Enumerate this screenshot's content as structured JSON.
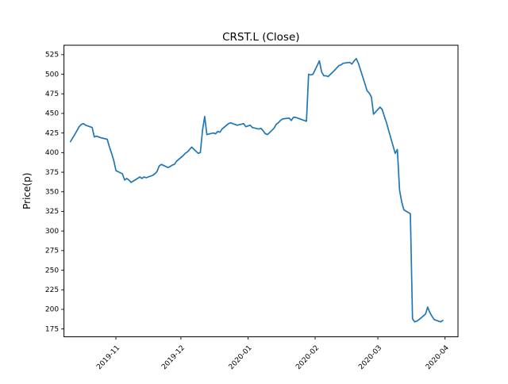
{
  "chart_data": {
    "type": "line",
    "title": "CRST.L (Close)",
    "ylabel": "Price(p)",
    "xlabel": "",
    "line_color": "#1f77b4",
    "background_color": "#ffffff",
    "grid": false,
    "legend": null,
    "ylim": [
      165,
      537
    ],
    "xlim": [
      "2019-10-08",
      "2020-04-07"
    ],
    "yticks": [
      175,
      200,
      225,
      250,
      275,
      300,
      325,
      350,
      375,
      400,
      425,
      450,
      475,
      500,
      525
    ],
    "xticks": [
      {
        "date": "2019-11-01",
        "label": "2019-11"
      },
      {
        "date": "2019-12-01",
        "label": "2019-12"
      },
      {
        "date": "2020-01-01",
        "label": "2020-01"
      },
      {
        "date": "2020-02-01",
        "label": "2020-02"
      },
      {
        "date": "2020-03-01",
        "label": "2020-03"
      },
      {
        "date": "2020-04-01",
        "label": "2020-04"
      }
    ],
    "series": [
      {
        "name": "Close",
        "dates": [
          "2019-10-11",
          "2019-10-14",
          "2019-10-15",
          "2019-10-16",
          "2019-10-17",
          "2019-10-18",
          "2019-10-21",
          "2019-10-22",
          "2019-10-23",
          "2019-10-24",
          "2019-10-25",
          "2019-10-28",
          "2019-10-29",
          "2019-10-30",
          "2019-10-31",
          "2019-11-01",
          "2019-11-04",
          "2019-11-05",
          "2019-11-06",
          "2019-11-07",
          "2019-11-08",
          "2019-11-11",
          "2019-11-12",
          "2019-11-13",
          "2019-11-14",
          "2019-11-15",
          "2019-11-18",
          "2019-11-19",
          "2019-11-20",
          "2019-11-21",
          "2019-11-22",
          "2019-11-25",
          "2019-11-26",
          "2019-11-27",
          "2019-11-28",
          "2019-11-29",
          "2019-12-02",
          "2019-12-03",
          "2019-12-04",
          "2019-12-05",
          "2019-12-06",
          "2019-12-09",
          "2019-12-10",
          "2019-12-11",
          "2019-12-12",
          "2019-12-13",
          "2019-12-16",
          "2019-12-17",
          "2019-12-18",
          "2019-12-19",
          "2019-12-20",
          "2019-12-23",
          "2019-12-24",
          "2019-12-27",
          "2019-12-30",
          "2019-12-31",
          "2020-01-02",
          "2020-01-03",
          "2020-01-06",
          "2020-01-07",
          "2020-01-08",
          "2020-01-09",
          "2020-01-10",
          "2020-01-13",
          "2020-01-14",
          "2020-01-15",
          "2020-01-16",
          "2020-01-17",
          "2020-01-20",
          "2020-01-21",
          "2020-01-22",
          "2020-01-23",
          "2020-01-24",
          "2020-01-27",
          "2020-01-28",
          "2020-01-29",
          "2020-01-30",
          "2020-01-31",
          "2020-02-03",
          "2020-02-04",
          "2020-02-05",
          "2020-02-06",
          "2020-02-07",
          "2020-02-10",
          "2020-02-11",
          "2020-02-12",
          "2020-02-13",
          "2020-02-14",
          "2020-02-17",
          "2020-02-18",
          "2020-02-19",
          "2020-02-20",
          "2020-02-21",
          "2020-02-24",
          "2020-02-25",
          "2020-02-26",
          "2020-02-27",
          "2020-02-28",
          "2020-03-02",
          "2020-03-03",
          "2020-03-04",
          "2020-03-05",
          "2020-03-06",
          "2020-03-09",
          "2020-03-10",
          "2020-03-11",
          "2020-03-12",
          "2020-03-13",
          "2020-03-16",
          "2020-03-17",
          "2020-03-18",
          "2020-03-19",
          "2020-03-20",
          "2020-03-23",
          "2020-03-24",
          "2020-03-25",
          "2020-03-26",
          "2020-03-27",
          "2020-03-30",
          "2020-03-31"
        ],
        "values": [
          414,
          428,
          433,
          436,
          437,
          435,
          432,
          420,
          421,
          420,
          419,
          417,
          407,
          399,
          390,
          377,
          373,
          365,
          367,
          365,
          362,
          367,
          369,
          367,
          369,
          368,
          371,
          373,
          376,
          383,
          385,
          381,
          382,
          384,
          385,
          389,
          396,
          399,
          401,
          404,
          407,
          399,
          400,
          429,
          446,
          423,
          425,
          424,
          427,
          426,
          430,
          437,
          438,
          435,
          437,
          433,
          435,
          432,
          430,
          431,
          428,
          424,
          423,
          431,
          436,
          438,
          441,
          443,
          444,
          441,
          445,
          445,
          444,
          441,
          440,
          500,
          499,
          500,
          517,
          503,
          498,
          498,
          497,
          505,
          508,
          511,
          512,
          514,
          515,
          513,
          517,
          520,
          514,
          488,
          479,
          476,
          471,
          449,
          458,
          455,
          446,
          438,
          428,
          399,
          404,
          352,
          337,
          327,
          322,
          188,
          184,
          185,
          187,
          194,
          203,
          196,
          191,
          187,
          184,
          186
        ]
      }
    ]
  }
}
